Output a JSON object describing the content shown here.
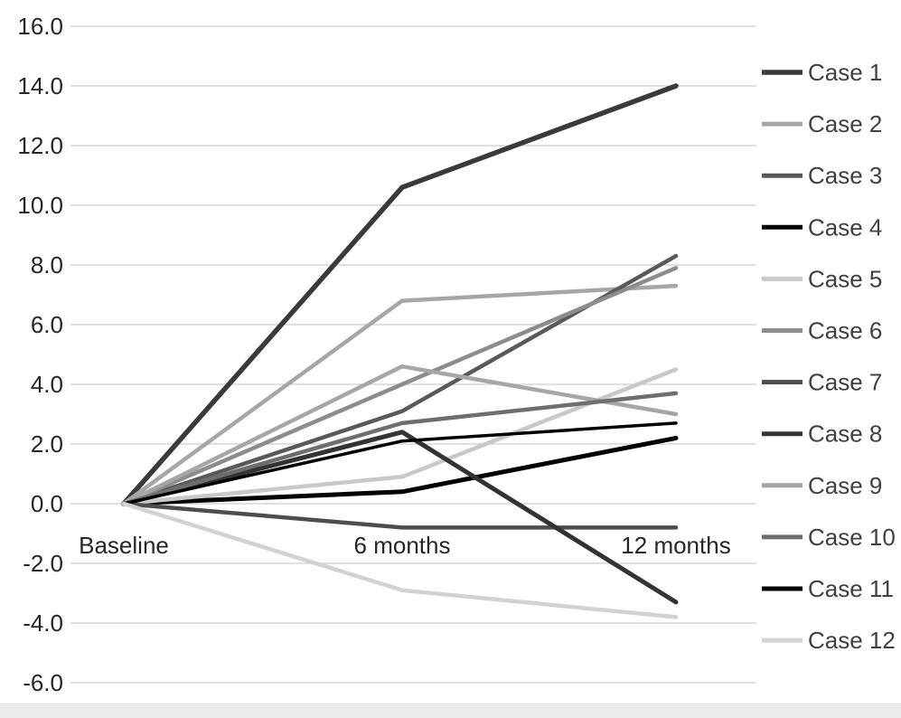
{
  "chart_data": {
    "type": "line",
    "title": "",
    "xlabel": "",
    "ylabel": "",
    "categories": [
      "Baseline",
      "6 months",
      "12 months"
    ],
    "y_tick_labels": [
      "16.0",
      "14.0",
      "12.0",
      "10.0",
      "8.0",
      "6.0",
      "4.0",
      "2.0",
      "0.0",
      "-2.0",
      "-4.0",
      "-6.0"
    ],
    "y_tick_values": [
      16,
      14,
      12,
      10,
      8,
      6,
      4,
      2,
      0,
      -2,
      -4,
      -6
    ],
    "ylim": [
      -6,
      16
    ],
    "grid": true,
    "gridline_color": "#cdcdcd",
    "axis_label_color": "#262626",
    "legend_position": "right",
    "legend_text_color": "#404040",
    "series": [
      {
        "name": "Case 1",
        "color": "#3a3a3a",
        "width": 5.5,
        "values": [
          0,
          10.6,
          14.0
        ]
      },
      {
        "name": "Case 2",
        "color": "#a6a6a6",
        "width": 4.5,
        "values": [
          0,
          6.8,
          7.3
        ]
      },
      {
        "name": "Case 3",
        "color": "#595959",
        "width": 4.5,
        "values": [
          0,
          3.1,
          8.3
        ]
      },
      {
        "name": "Case 4",
        "color": "#000000",
        "width": 5.0,
        "values": [
          0,
          0.4,
          2.2
        ]
      },
      {
        "name": "Case 5",
        "color": "#c8c8c8",
        "width": 4.5,
        "values": [
          0,
          0.9,
          4.5
        ]
      },
      {
        "name": "Case 6",
        "color": "#8c8c8c",
        "width": 4.5,
        "values": [
          0,
          4.0,
          7.9
        ]
      },
      {
        "name": "Case 7",
        "color": "#4d4d4d",
        "width": 4.5,
        "values": [
          0,
          -0.8,
          -0.8
        ]
      },
      {
        "name": "Case 8",
        "color": "#333333",
        "width": 5.0,
        "values": [
          0,
          2.4,
          -3.3
        ]
      },
      {
        "name": "Case 9",
        "color": "#a6a6a6",
        "width": 4.5,
        "values": [
          0,
          4.6,
          3.0
        ]
      },
      {
        "name": "Case 10",
        "color": "#6e6e6e",
        "width": 4.5,
        "values": [
          0,
          2.7,
          3.7
        ]
      },
      {
        "name": "Case 11",
        "color": "#000000",
        "width": 3.5,
        "values": [
          0,
          2.1,
          2.7
        ]
      },
      {
        "name": "Case 12",
        "color": "#d2d2d2",
        "width": 4.5,
        "values": [
          0,
          -2.9,
          -3.8
        ]
      }
    ]
  }
}
